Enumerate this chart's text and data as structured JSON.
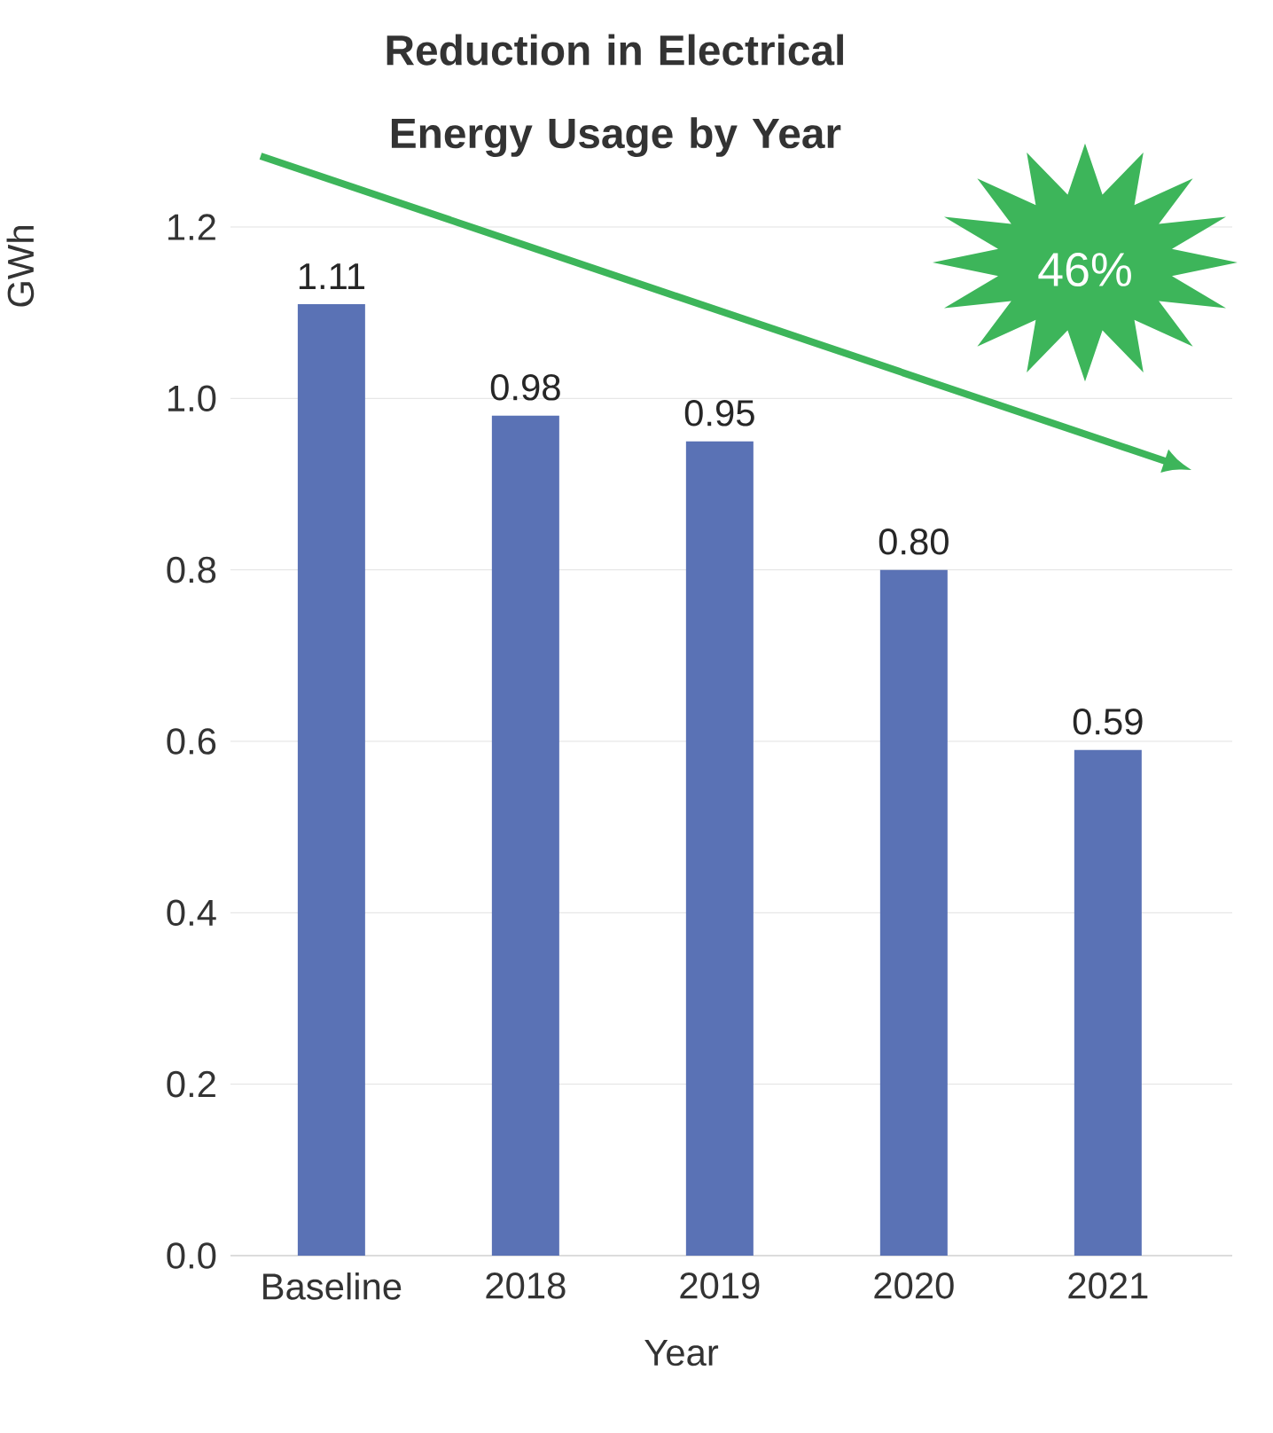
{
  "chart_data": {
    "type": "bar",
    "title": "Reduction in Electrical Energy Usage by Year",
    "xlabel": "Year",
    "ylabel": "GWh",
    "categories": [
      "Baseline",
      "2018",
      "2019",
      "2020",
      "2021"
    ],
    "values": [
      1.11,
      0.98,
      0.95,
      0.8,
      0.59
    ],
    "value_labels": [
      "1.11",
      "0.98",
      "0.95",
      "0.80",
      "0.59"
    ],
    "color": "#5a72b5",
    "ylim": [
      0,
      1.2
    ],
    "yticks": [
      {
        "value": 0,
        "label": "0.0"
      },
      {
        "value": 0.2,
        "label": "0.2"
      },
      {
        "value": 0.4,
        "label": "0.4"
      },
      {
        "value": 0.6,
        "label": "0.6"
      },
      {
        "value": 0.8,
        "label": "0.8"
      },
      {
        "value": 1.0,
        "label": "1.0"
      },
      {
        "value": 1.2,
        "label": "1.2"
      }
    ],
    "grid": "y",
    "annotations": [
      "46%"
    ]
  }
}
